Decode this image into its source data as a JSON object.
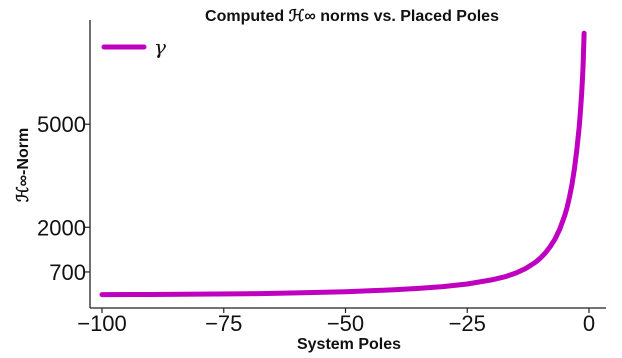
{
  "chart_data": {
    "type": "line",
    "title": "Computed ℋ∞ norms vs. Placed Poles",
    "xlabel": "System Poles",
    "ylabel": "ℋ∞-Norm",
    "xlim": [
      -100,
      0
    ],
    "ylim": [
      0,
      7800
    ],
    "xticks": [
      -100,
      -75,
      -50,
      -25,
      0
    ],
    "xtick_labels": [
      "−100",
      "−75",
      "−50",
      "−25",
      "0"
    ],
    "yticks": [
      700,
      2000,
      5000
    ],
    "ytick_labels": [
      "700",
      "2000",
      "5000"
    ],
    "grid": false,
    "legend": {
      "position": "top-left"
    },
    "series": [
      {
        "name": "γ",
        "color": "#bf00bf",
        "x": [
          -100,
          -90,
          -80,
          -70,
          -60,
          -50,
          -45,
          -40,
          -35,
          -30,
          -25,
          -20,
          -17,
          -15,
          -13,
          -11,
          -10,
          -9,
          -8,
          -7,
          -6,
          -5,
          -4.5,
          -4,
          -3.5,
          -3,
          -2.5,
          -2,
          -1.7,
          -1.5,
          -1.3,
          -1.2,
          -1.1,
          -1
        ],
        "y": [
          40,
          45,
          55,
          65,
          90,
          125,
          150,
          180,
          220,
          275,
          350,
          470,
          570,
          670,
          800,
          980,
          1100,
          1250,
          1430,
          1650,
          1950,
          2330,
          2580,
          2880,
          3250,
          3700,
          4250,
          4950,
          5480,
          5920,
          6450,
          6800,
          7180,
          7650
        ]
      }
    ]
  }
}
